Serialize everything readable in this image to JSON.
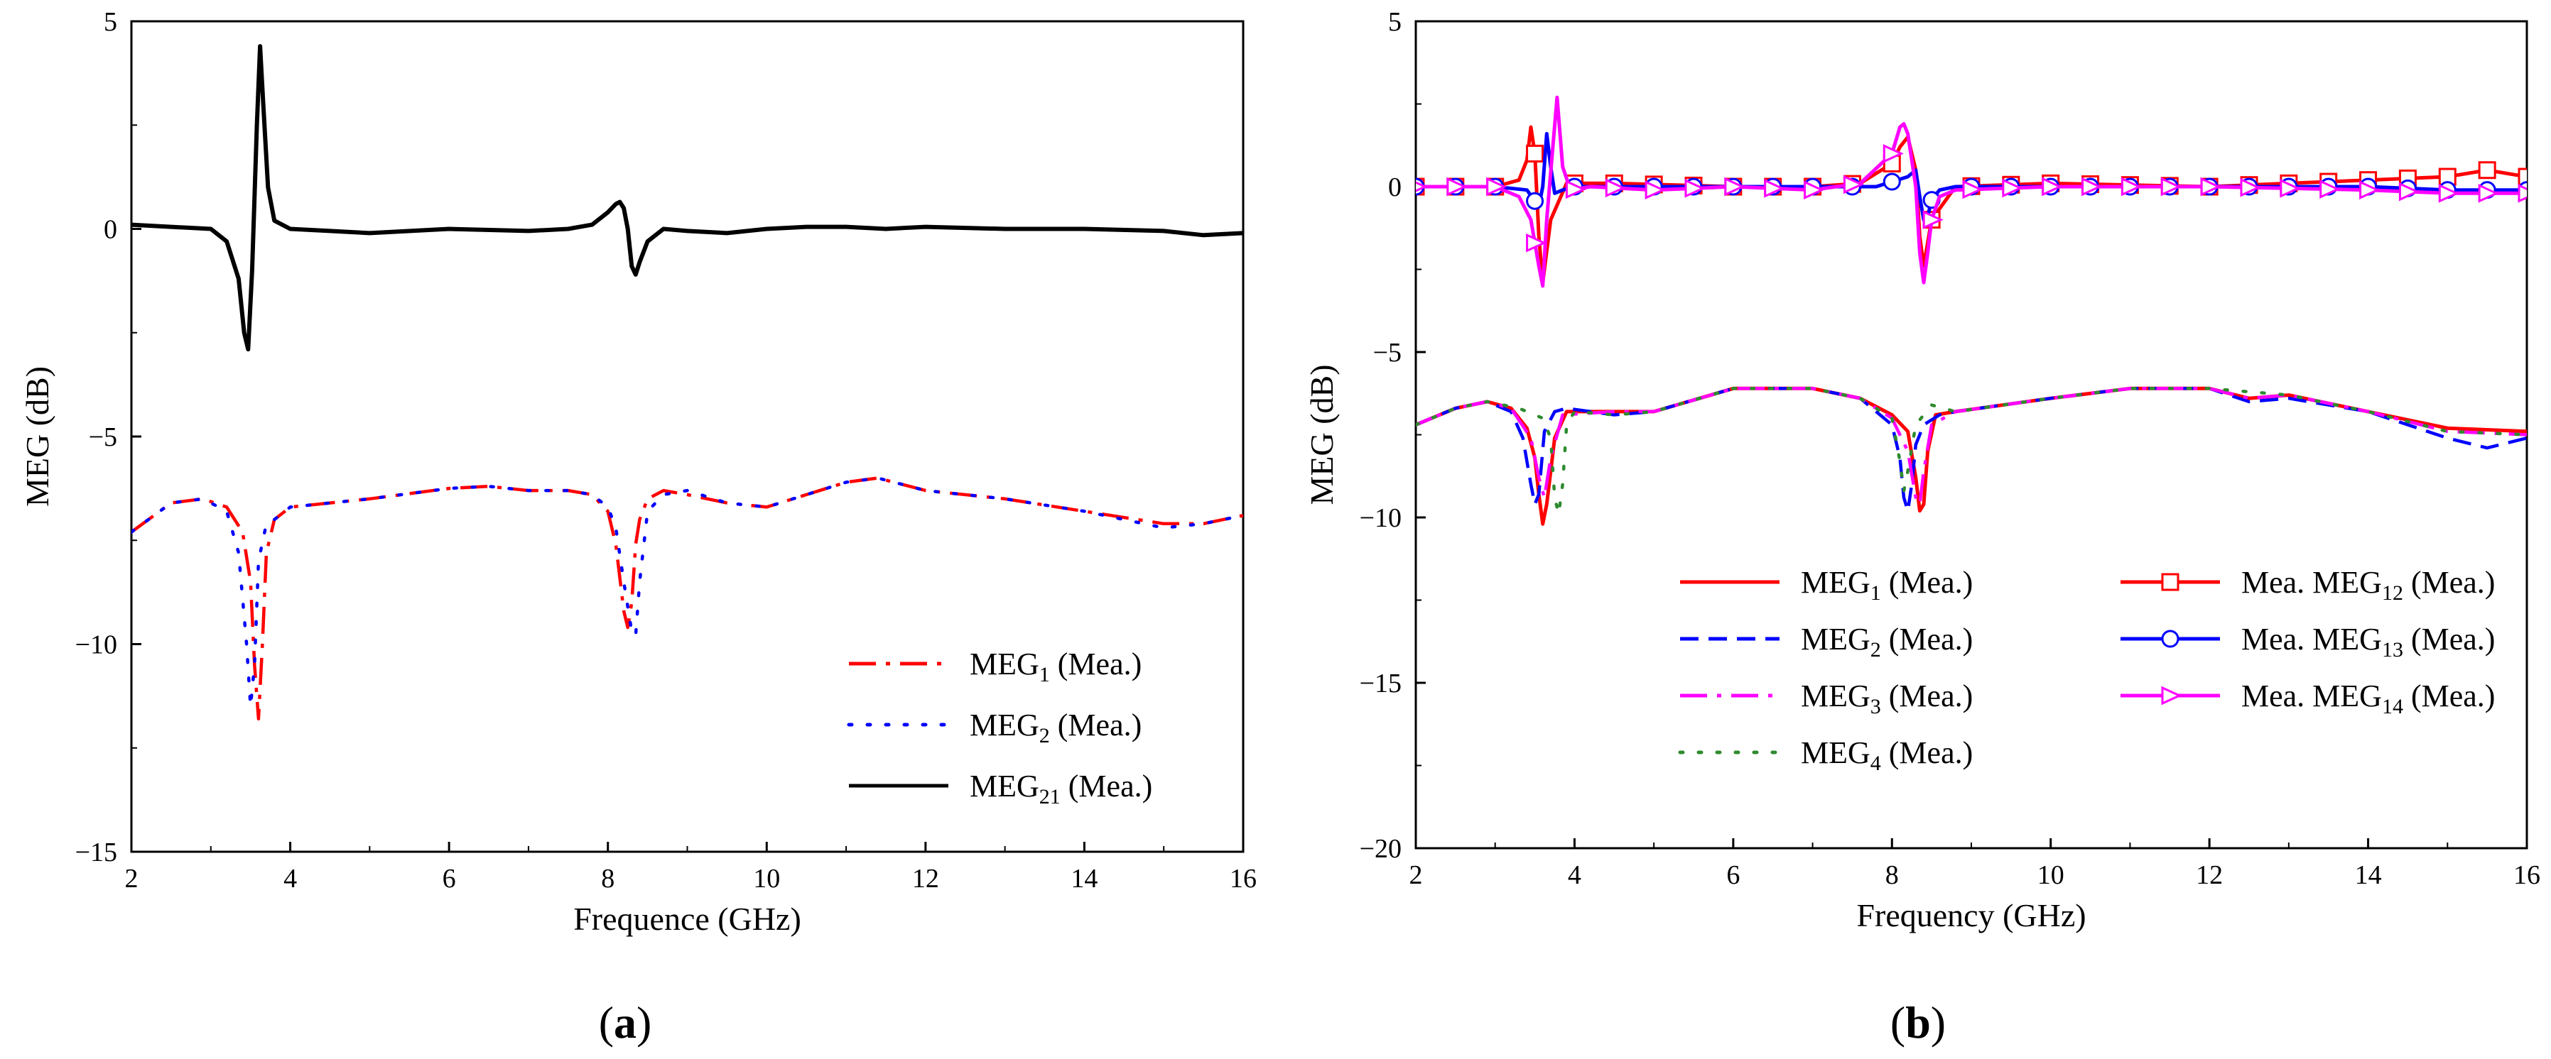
{
  "chart_data": [
    {
      "type": "line",
      "panel_label": "a",
      "xlabel": "Frequence (GHz)",
      "ylabel": "MEG (dB)",
      "xlim": [
        2,
        16
      ],
      "ylim": [
        -15,
        5
      ],
      "xticks": [
        "2",
        "4",
        "6",
        "8",
        "10",
        "12",
        "14",
        "16"
      ],
      "yticks": [
        "5",
        "0",
        "−5",
        "−10",
        "−15"
      ],
      "legend_position": "bottom-right",
      "series": [
        {
          "name": "MEG1 (Mea.)",
          "legend_base": "MEG",
          "legend_sub": "1",
          "legend_tail": " (Mea.)",
          "color": "#ff0000",
          "style": "dashdot",
          "x": [
            2.0,
            2.5,
            2.9,
            3.2,
            3.4,
            3.5,
            3.55,
            3.6,
            3.65,
            3.7,
            3.8,
            4.0,
            5.0,
            6.0,
            6.5,
            7.0,
            7.5,
            7.8,
            8.0,
            8.1,
            8.2,
            8.25,
            8.3,
            8.35,
            8.4,
            8.5,
            8.7,
            9.0,
            9.5,
            10.0,
            10.5,
            11.0,
            11.4,
            12.0,
            13.0,
            14.0,
            15.0,
            15.5,
            16.0
          ],
          "y": [
            -7.3,
            -6.6,
            -6.5,
            -6.7,
            -7.3,
            -8.5,
            -10.5,
            -11.8,
            -10.0,
            -7.8,
            -7.0,
            -6.7,
            -6.5,
            -6.25,
            -6.2,
            -6.3,
            -6.3,
            -6.4,
            -6.8,
            -7.6,
            -9.2,
            -9.6,
            -9.0,
            -7.6,
            -7.0,
            -6.5,
            -6.3,
            -6.4,
            -6.6,
            -6.7,
            -6.4,
            -6.1,
            -6.0,
            -6.3,
            -6.5,
            -6.8,
            -7.1,
            -7.1,
            -6.9
          ]
        },
        {
          "name": "MEG2 (Mea.)",
          "legend_base": "MEG",
          "legend_sub": "2",
          "legend_tail": " (Mea.)",
          "color": "#0000ff",
          "style": "dotted",
          "x": [
            2.0,
            2.5,
            2.9,
            3.2,
            3.35,
            3.45,
            3.5,
            3.55,
            3.6,
            3.7,
            3.8,
            4.0,
            5.0,
            6.0,
            6.5,
            7.0,
            7.5,
            7.8,
            8.0,
            8.1,
            8.2,
            8.3,
            8.35,
            8.4,
            8.5,
            8.7,
            9.0,
            9.5,
            10.0,
            10.5,
            11.0,
            11.4,
            12.0,
            13.0,
            14.0,
            15.0,
            15.5,
            16.0
          ],
          "y": [
            -7.3,
            -6.6,
            -6.5,
            -6.8,
            -7.8,
            -10.0,
            -11.5,
            -10.5,
            -8.0,
            -7.1,
            -7.0,
            -6.7,
            -6.5,
            -6.25,
            -6.2,
            -6.3,
            -6.3,
            -6.4,
            -6.7,
            -7.2,
            -8.5,
            -9.7,
            -9.8,
            -8.5,
            -6.8,
            -6.4,
            -6.3,
            -6.6,
            -6.7,
            -6.4,
            -6.1,
            -6.0,
            -6.3,
            -6.5,
            -6.8,
            -7.2,
            -7.1,
            -6.9
          ]
        },
        {
          "name": "MEG21 (Mea.)",
          "legend_base": "MEG",
          "legend_sub": "21",
          "legend_tail": " (Mea.)",
          "color": "#000000",
          "style": "solid",
          "x": [
            2.0,
            2.5,
            3.0,
            3.2,
            3.35,
            3.42,
            3.47,
            3.52,
            3.58,
            3.62,
            3.66,
            3.72,
            3.8,
            4.0,
            4.5,
            5.0,
            6.0,
            7.0,
            7.5,
            7.8,
            8.0,
            8.1,
            8.15,
            8.2,
            8.25,
            8.3,
            8.35,
            8.4,
            8.5,
            8.7,
            9.0,
            9.5,
            10.0,
            10.5,
            11.0,
            11.5,
            12.0,
            13.0,
            14.0,
            15.0,
            15.5,
            16.0
          ],
          "y": [
            0.1,
            0.05,
            0.0,
            -0.3,
            -1.2,
            -2.5,
            -2.9,
            -1.0,
            2.5,
            4.4,
            3.0,
            1.0,
            0.2,
            0.0,
            -0.05,
            -0.1,
            0.0,
            -0.05,
            0.0,
            0.1,
            0.4,
            0.6,
            0.65,
            0.5,
            0.0,
            -0.9,
            -1.1,
            -0.8,
            -0.3,
            0.0,
            -0.05,
            -0.1,
            0.0,
            0.05,
            0.05,
            0.0,
            0.05,
            0.0,
            0.0,
            -0.05,
            -0.15,
            -0.1
          ]
        }
      ]
    },
    {
      "type": "line",
      "panel_label": "b",
      "xlabel": "Frequency (GHz)",
      "ylabel": "MEG (dB)",
      "xlim": [
        2,
        16
      ],
      "ylim": [
        -20,
        5
      ],
      "xticks": [
        "2",
        "4",
        "6",
        "8",
        "10",
        "12",
        "14",
        "16"
      ],
      "yticks": [
        "5",
        "0",
        "−5",
        "−10",
        "−15",
        "−20"
      ],
      "legend_position": "bottom-right",
      "series": [
        {
          "name": "MEG1 (Mea.)",
          "legend_base": "MEG",
          "legend_sub": "1",
          "legend_tail": "  (Mea.)",
          "color": "#ff0000",
          "style": "solid",
          "x": [
            2.0,
            2.5,
            2.9,
            3.2,
            3.4,
            3.5,
            3.55,
            3.6,
            3.65,
            3.75,
            3.9,
            4.5,
            5.0,
            6.0,
            7.0,
            7.6,
            8.0,
            8.2,
            8.3,
            8.35,
            8.4,
            8.45,
            8.55,
            8.8,
            10.0,
            11.0,
            12.0,
            12.5,
            13.0,
            14.0,
            15.0,
            16.0
          ],
          "y": [
            -7.2,
            -6.7,
            -6.5,
            -6.7,
            -7.3,
            -8.2,
            -9.3,
            -10.2,
            -9.6,
            -7.6,
            -6.8,
            -6.8,
            -6.8,
            -6.1,
            -6.1,
            -6.4,
            -6.9,
            -7.4,
            -8.8,
            -9.8,
            -9.6,
            -8.0,
            -6.9,
            -6.8,
            -6.4,
            -6.1,
            -6.1,
            -6.4,
            -6.3,
            -6.8,
            -7.3,
            -7.4
          ]
        },
        {
          "name": "MEG2 (Mea.)",
          "legend_base": "MEG",
          "legend_sub": "2",
          "legend_tail": "  (Mea.)",
          "color": "#0000ff",
          "style": "dashed",
          "x": [
            2.0,
            2.5,
            2.9,
            3.2,
            3.35,
            3.45,
            3.5,
            3.55,
            3.62,
            3.75,
            3.9,
            4.5,
            5.0,
            6.0,
            7.0,
            7.6,
            8.0,
            8.1,
            8.15,
            8.2,
            8.25,
            8.3,
            8.4,
            8.6,
            8.8,
            10.0,
            11.0,
            12.0,
            12.5,
            13.0,
            14.0,
            15.0,
            15.5,
            16.0
          ],
          "y": [
            -7.2,
            -6.7,
            -6.5,
            -6.8,
            -7.6,
            -9.0,
            -9.6,
            -9.3,
            -7.4,
            -6.8,
            -6.7,
            -6.9,
            -6.8,
            -6.1,
            -6.1,
            -6.4,
            -7.2,
            -8.2,
            -9.4,
            -9.8,
            -9.0,
            -7.8,
            -7.2,
            -6.9,
            -6.8,
            -6.4,
            -6.1,
            -6.1,
            -6.5,
            -6.4,
            -6.8,
            -7.6,
            -7.9,
            -7.6
          ]
        },
        {
          "name": "MEG3 (Mea.)",
          "legend_base": "MEG",
          "legend_sub": "3",
          "legend_tail": "  (Mea.)",
          "color": "#ff00ff",
          "style": "dashdot",
          "x": [
            2.0,
            2.5,
            2.9,
            3.2,
            3.45,
            3.55,
            3.62,
            3.7,
            3.85,
            4.5,
            5.0,
            6.0,
            7.0,
            7.6,
            8.0,
            8.2,
            8.3,
            8.35,
            8.4,
            8.5,
            8.8,
            10.0,
            11.0,
            12.0,
            12.5,
            13.0,
            14.0,
            15.0,
            16.0
          ],
          "y": [
            -7.2,
            -6.7,
            -6.5,
            -6.7,
            -7.6,
            -8.8,
            -9.4,
            -8.2,
            -6.9,
            -6.8,
            -6.8,
            -6.1,
            -6.1,
            -6.4,
            -7.0,
            -8.0,
            -9.4,
            -9.6,
            -8.6,
            -7.2,
            -6.8,
            -6.4,
            -6.1,
            -6.1,
            -6.4,
            -6.3,
            -6.8,
            -7.4,
            -7.5
          ]
        },
        {
          "name": "MEG4 (Mea.)",
          "legend_base": "MEG",
          "legend_sub": "4",
          "legend_tail": " (Mea.)",
          "color": "#2e8b2e",
          "style": "dotted",
          "x": [
            2.0,
            2.5,
            2.9,
            3.3,
            3.6,
            3.7,
            3.75,
            3.8,
            3.85,
            3.9,
            4.0,
            4.5,
            5.0,
            6.0,
            7.0,
            7.6,
            8.0,
            8.1,
            8.15,
            8.2,
            8.3,
            8.5,
            8.8,
            10.0,
            11.0,
            12.0,
            13.0,
            14.0,
            15.0,
            16.0
          ],
          "y": [
            -7.2,
            -6.7,
            -6.5,
            -6.7,
            -7.0,
            -7.6,
            -9.4,
            -9.9,
            -9.0,
            -7.2,
            -6.8,
            -6.9,
            -6.8,
            -6.1,
            -6.1,
            -6.4,
            -7.0,
            -8.3,
            -9.2,
            -8.6,
            -7.2,
            -6.6,
            -6.8,
            -6.4,
            -6.1,
            -6.1,
            -6.3,
            -6.8,
            -7.4,
            -7.5
          ]
        },
        {
          "name": "Mea. MEG12 (Mea.)",
          "legend_base": "Mea. MEG",
          "legend_sub": "12",
          "legend_tail": " (Mea.)",
          "color": "#ff0000",
          "style": "solid",
          "marker": "square",
          "x": [
            2.0,
            3.0,
            3.3,
            3.4,
            3.45,
            3.5,
            3.55,
            3.6,
            3.7,
            3.9,
            4.5,
            6.0,
            7.0,
            7.6,
            8.0,
            8.1,
            8.2,
            8.3,
            8.35,
            8.4,
            8.5,
            8.8,
            10.0,
            12.0,
            13.0,
            14.0,
            15.0,
            15.5,
            16.0
          ],
          "y": [
            0.0,
            0.0,
            0.2,
            0.8,
            1.8,
            1.0,
            -1.5,
            -2.9,
            -1.0,
            0.1,
            0.1,
            0.0,
            0.0,
            0.1,
            0.7,
            1.2,
            1.5,
            0.5,
            -1.5,
            -2.4,
            -1.0,
            0.0,
            0.1,
            0.0,
            0.1,
            0.2,
            0.3,
            0.5,
            0.3
          ]
        },
        {
          "name": "Mea. MEG13 (Mea.)",
          "legend_base": "Mea. MEG",
          "legend_sub": "13",
          "legend_tail": " (Mea.)",
          "color": "#0000ff",
          "style": "solid",
          "marker": "circle",
          "x": [
            2.0,
            3.0,
            3.4,
            3.55,
            3.6,
            3.65,
            3.7,
            3.75,
            3.85,
            4.0,
            4.5,
            6.0,
            7.0,
            7.8,
            8.2,
            8.3,
            8.35,
            8.4,
            8.45,
            8.5,
            8.6,
            8.8,
            10.0,
            12.0,
            14.0,
            15.0,
            16.0
          ],
          "y": [
            0.0,
            0.0,
            -0.1,
            -0.6,
            0.0,
            1.6,
            0.6,
            -0.2,
            -0.1,
            0.0,
            0.0,
            0.0,
            0.0,
            0.0,
            0.3,
            0.5,
            -0.3,
            -1.0,
            -0.9,
            -0.4,
            -0.1,
            0.0,
            0.0,
            0.0,
            0.0,
            -0.1,
            -0.1
          ]
        },
        {
          "name": "Mea. MEG14 (Mea.)",
          "legend_base": "Mea. MEG",
          "legend_sub": "14",
          "legend_tail": " (Mea.)",
          "color": "#ff00ff",
          "style": "solid",
          "marker": "triangle-right",
          "x": [
            2.0,
            3.0,
            3.3,
            3.45,
            3.55,
            3.6,
            3.65,
            3.72,
            3.78,
            3.85,
            3.95,
            4.2,
            5.0,
            6.0,
            7.0,
            7.6,
            8.0,
            8.1,
            8.15,
            8.2,
            8.3,
            8.35,
            8.4,
            8.45,
            8.5,
            8.6,
            8.8,
            10.0,
            12.0,
            14.0,
            15.0,
            16.0
          ],
          "y": [
            0.0,
            0.0,
            -0.3,
            -1.0,
            -2.4,
            -3.0,
            -1.0,
            1.0,
            2.7,
            0.6,
            -0.1,
            0.0,
            -0.1,
            0.0,
            -0.1,
            0.1,
            1.0,
            1.8,
            1.9,
            1.6,
            0.0,
            -2.0,
            -2.9,
            -2.0,
            -1.0,
            -0.3,
            -0.1,
            0.0,
            0.0,
            -0.1,
            -0.2,
            -0.2
          ]
        }
      ]
    }
  ]
}
